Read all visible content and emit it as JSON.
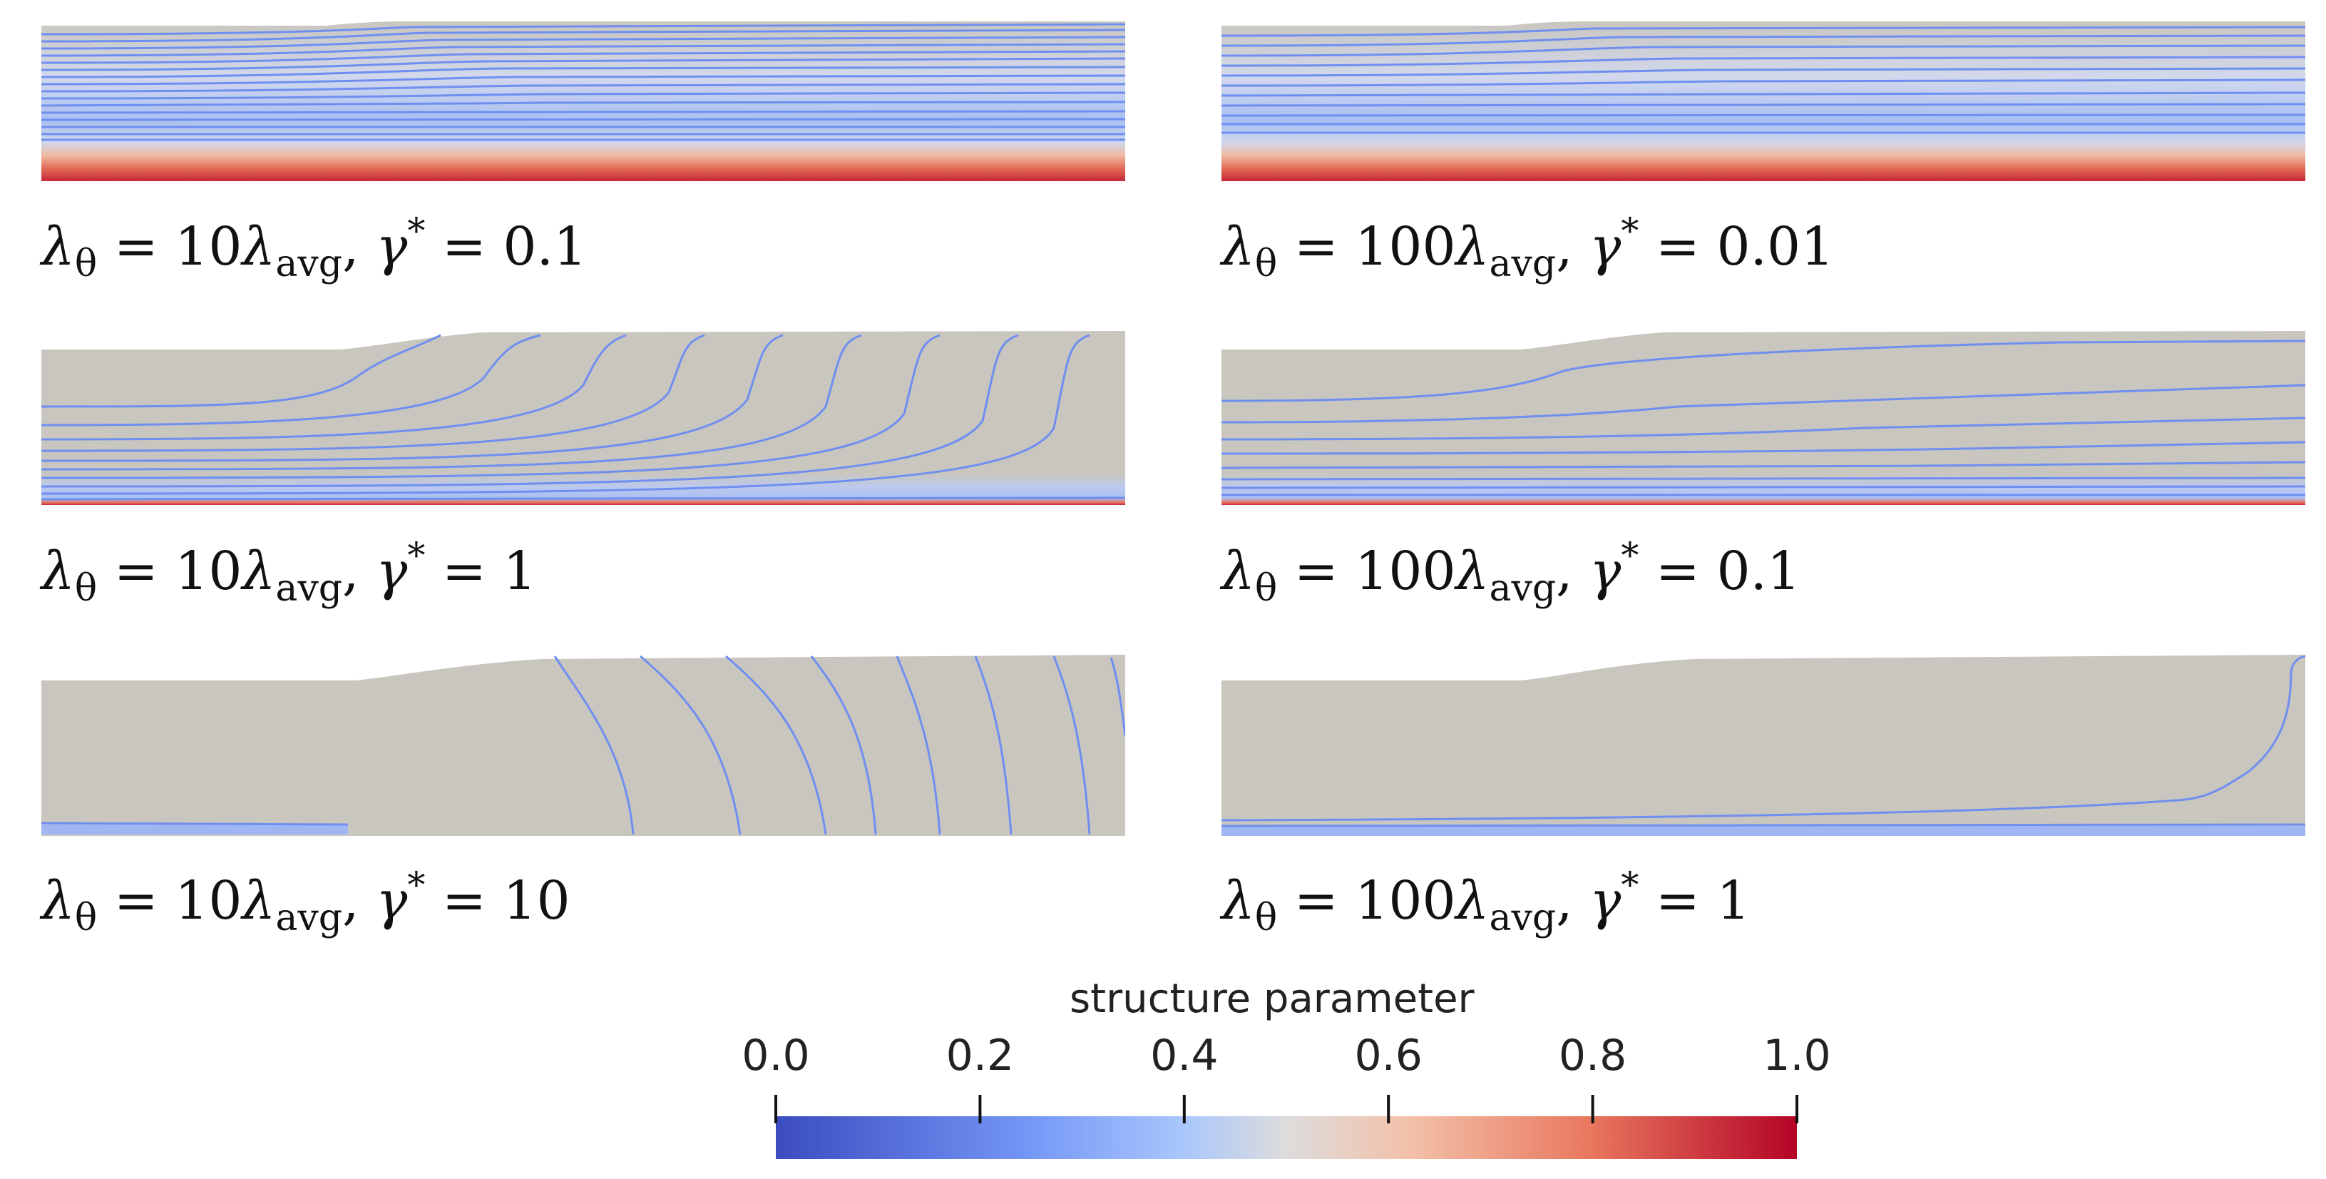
{
  "colors": {
    "background": "#c9c6bf",
    "contour": "#6f8ff0",
    "cmap_low": "#3b4cc0",
    "cmap_mid": "#dddcdc",
    "cmap_high": "#b40426"
  },
  "panels": [
    {
      "id": "p1",
      "lambda_coef": "10",
      "gamma_value": "0.1",
      "contour_style": "horizontal-dense",
      "bottom_band": "red-strong"
    },
    {
      "id": "p2",
      "lambda_coef": "100",
      "gamma_value": "0.01",
      "contour_style": "horizontal-dense",
      "bottom_band": "red-strong"
    },
    {
      "id": "p3",
      "lambda_coef": "10",
      "gamma_value": "1",
      "contour_style": "curved-vertical",
      "bottom_band": "red-thin"
    },
    {
      "id": "p4",
      "lambda_coef": "100",
      "gamma_value": "0.1",
      "contour_style": "horizontal-sparse",
      "bottom_band": "red-thin"
    },
    {
      "id": "p5",
      "lambda_coef": "10",
      "gamma_value": "10",
      "contour_style": "vertical-sparse",
      "bottom_band": "blue-thin"
    },
    {
      "id": "p6",
      "lambda_coef": "100",
      "gamma_value": "1",
      "contour_style": "edge-curve",
      "bottom_band": "blue-thin"
    }
  ],
  "caption": {
    "lambda_symbol": "λ",
    "theta_sub": "θ",
    "avg_sub": "avg",
    "gamma_symbol": "γ",
    "star": "*",
    "equals": " = ",
    "comma": ", "
  },
  "colorbar": {
    "title": "structure parameter",
    "range": [
      0.0,
      1.0
    ],
    "ticks": [
      "0.0",
      "0.2",
      "0.4",
      "0.6",
      "0.8",
      "1.0"
    ],
    "tick_values": [
      0.0,
      0.2,
      0.4,
      0.6,
      0.8,
      1.0
    ]
  }
}
